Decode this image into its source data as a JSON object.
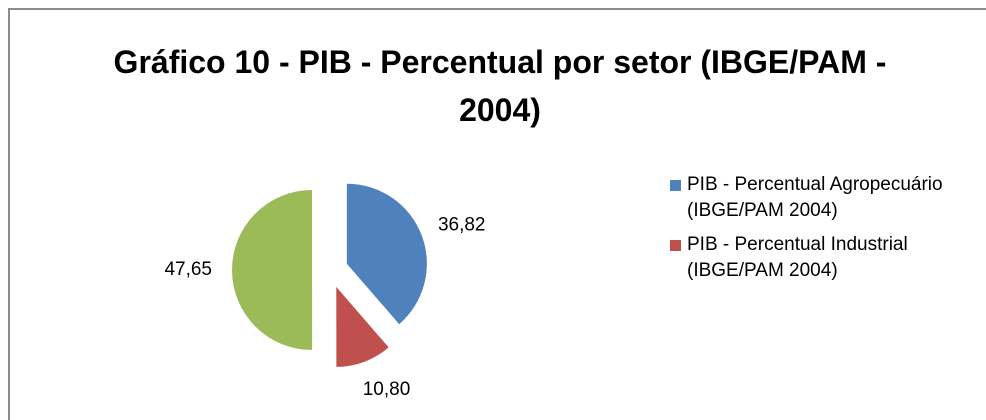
{
  "chart_data": {
    "type": "pie",
    "title": "Gráfico 10 - PIB - Percentual por setor (IBGE/PAM - 2004)",
    "categories": [
      "PIB - Percentual Agropecuário (IBGE/PAM 2004)",
      "PIB - Percentual Industrial (IBGE/PAM 2004)",
      null
    ],
    "values": [
      36.82,
      10.8,
      47.65
    ],
    "value_labels": [
      "36,82",
      "10,80",
      "47,65"
    ],
    "colors": [
      "#4f81bd",
      "#c0504d",
      "#9bbb59"
    ],
    "legend": "right"
  }
}
